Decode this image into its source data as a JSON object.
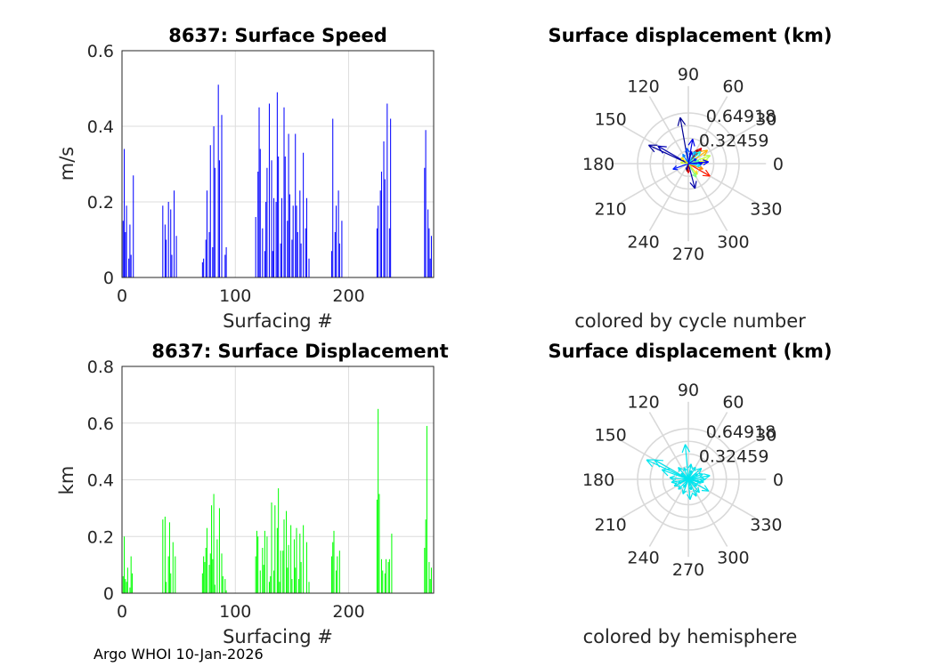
{
  "footer": "Argo WHOI 10-Jan-2026",
  "chart_data": [
    {
      "id": "speed",
      "type": "bar",
      "title": "8637: Surface Speed",
      "xlabel": "Surfacing #",
      "ylabel": "m/s",
      "xlim": [
        0,
        275
      ],
      "ylim": [
        0,
        0.6
      ],
      "xticks": [
        "0",
        "100",
        "200"
      ],
      "yticks": [
        "0",
        "0.2",
        "0.4",
        "0.6"
      ],
      "color": "#0000ff",
      "grid": true,
      "series": [
        {
          "name": "speed",
          "x": [
            1,
            2,
            3,
            4,
            6,
            7,
            8,
            10,
            36,
            38,
            39,
            41,
            43,
            44,
            46,
            48,
            71,
            72,
            74,
            75,
            77,
            78,
            80,
            81,
            82,
            85,
            86,
            88,
            91,
            92,
            118,
            120,
            121,
            122,
            124,
            126,
            127,
            128,
            130,
            132,
            133,
            134,
            136,
            137,
            138,
            140,
            141,
            143,
            144,
            146,
            147,
            148,
            150,
            151,
            153,
            154,
            155,
            157,
            158,
            160,
            162,
            163,
            165,
            185,
            186,
            188,
            189,
            191,
            192,
            194,
            225,
            226,
            228,
            229,
            231,
            232,
            234,
            236,
            237,
            267,
            268,
            270,
            271,
            272,
            273
          ],
          "y": [
            0.15,
            0.34,
            0.12,
            0.19,
            0.05,
            0.14,
            0.06,
            0.27,
            0.19,
            0.14,
            0.1,
            0.2,
            0.18,
            0.06,
            0.23,
            0.11,
            0.04,
            0.05,
            0.1,
            0.23,
            0.12,
            0.35,
            0.08,
            0.4,
            0.29,
            0.51,
            0.31,
            0.43,
            0.06,
            0.08,
            0.16,
            0.28,
            0.45,
            0.34,
            0.13,
            0.07,
            0.2,
            0.29,
            0.46,
            0.31,
            0.07,
            0.21,
            0.2,
            0.49,
            0.32,
            0.09,
            0.21,
            0.45,
            0.32,
            0.15,
            0.38,
            0.22,
            0.1,
            0.19,
            0.38,
            0.19,
            0.12,
            0.23,
            0.09,
            0.33,
            0.13,
            0.21,
            0.05,
            0.07,
            0.42,
            0.12,
            0.19,
            0.23,
            0.09,
            0.15,
            0.13,
            0.19,
            0.23,
            0.28,
            0.36,
            0.26,
            0.46,
            0.13,
            0.42,
            0.29,
            0.39,
            0.18,
            0.13,
            0.05,
            0.11
          ]
        }
      ]
    },
    {
      "id": "displacement",
      "type": "bar",
      "title": "8637: Surface Displacement",
      "xlabel": "Surfacing #",
      "ylabel": "km",
      "xlim": [
        0,
        275
      ],
      "ylim": [
        0,
        0.8
      ],
      "xticks": [
        "0",
        "100",
        "200"
      ],
      "yticks": [
        "0",
        "0.2",
        "0.4",
        "0.6",
        "0.8"
      ],
      "color": "#00ff00",
      "grid": true,
      "series": [
        {
          "name": "displacement",
          "x": [
            1,
            2,
            3,
            4,
            5,
            7,
            8,
            9,
            36,
            38,
            39,
            41,
            42,
            43,
            45,
            47,
            71,
            72,
            73,
            74,
            75,
            77,
            78,
            79,
            80,
            81,
            82,
            84,
            86,
            88,
            89,
            91,
            92,
            118,
            119,
            120,
            122,
            124,
            125,
            126,
            128,
            130,
            131,
            132,
            134,
            135,
            137,
            138,
            139,
            140,
            142,
            143,
            145,
            146,
            147,
            149,
            150,
            152,
            153,
            154,
            156,
            157,
            158,
            160,
            163,
            165,
            185,
            186,
            187,
            189,
            190,
            192,
            225,
            226,
            227,
            229,
            230,
            232,
            233,
            235,
            236,
            238,
            267,
            268,
            269,
            271,
            272,
            273
          ],
          "y": [
            0.06,
            0.2,
            0.05,
            0.04,
            0.09,
            0.02,
            0.13,
            0.07,
            0.26,
            0.27,
            0.04,
            0.13,
            0.25,
            0.07,
            0.18,
            0.13,
            0.07,
            0.13,
            0.11,
            0.16,
            0.23,
            0.1,
            0.14,
            0.31,
            0.12,
            0.35,
            0.03,
            0.19,
            0.3,
            0.14,
            0.06,
            0.05,
            0.01,
            0.13,
            0.22,
            0.2,
            0.08,
            0.16,
            0.1,
            0.22,
            0.2,
            0.04,
            0.06,
            0.32,
            0.08,
            0.31,
            0.23,
            0.37,
            0.04,
            0.15,
            0.15,
            0.26,
            0.29,
            0.09,
            0.17,
            0.24,
            0.05,
            0.19,
            0.09,
            0.23,
            0.05,
            0.21,
            0.11,
            0.24,
            0.18,
            0.04,
            0.13,
            0.18,
            0.22,
            0.08,
            0.13,
            0.15,
            0.33,
            0.65,
            0.35,
            0.12,
            0.08,
            0.07,
            0.12,
            0.11,
            0.12,
            0.21,
            0.16,
            0.26,
            0.59,
            0.11,
            0.05,
            0.09
          ]
        }
      ]
    },
    {
      "id": "polar-cycle",
      "type": "polar-vectors",
      "title": "Surface displacement (km)",
      "caption": "colored by cycle number",
      "rmax": 0.64918,
      "ring_labels": [
        "0.32459",
        "0.64918"
      ],
      "angle_labels": [
        "0",
        "30",
        "60",
        "90",
        "120",
        "150",
        "180",
        "210",
        "240",
        "270",
        "300",
        "330"
      ],
      "color_mode": "cycle",
      "vectors": [
        {
          "angle": 100,
          "r": 0.6,
          "c": 0.02
        },
        {
          "angle": 155,
          "r": 0.56,
          "c": 0.03
        },
        {
          "angle": 150,
          "r": 0.45,
          "c": 0.05
        },
        {
          "angle": 285,
          "r": 0.33,
          "c": 0.04
        },
        {
          "angle": 80,
          "r": 0.32,
          "c": 0.1
        },
        {
          "angle": 200,
          "r": 0.21,
          "c": 0.15
        },
        {
          "angle": 20,
          "r": 0.3,
          "c": 0.55
        },
        {
          "angle": 10,
          "r": 0.25,
          "c": 0.6
        },
        {
          "angle": 35,
          "r": 0.3,
          "c": 0.7
        },
        {
          "angle": 330,
          "r": 0.32,
          "c": 0.85
        },
        {
          "angle": 340,
          "r": 0.2,
          "c": 0.75
        },
        {
          "angle": 50,
          "r": 0.26,
          "c": 0.9
        },
        {
          "angle": 55,
          "r": 0.22,
          "c": 0.95
        },
        {
          "angle": 310,
          "r": 0.18,
          "c": 0.65
        },
        {
          "angle": 300,
          "r": 0.2,
          "c": 0.5
        },
        {
          "angle": 45,
          "r": 0.22,
          "c": 0.4
        },
        {
          "angle": 60,
          "r": 0.18,
          "c": 0.3
        },
        {
          "angle": 95,
          "r": 0.2,
          "c": 0.2
        },
        {
          "angle": 0,
          "r": 0.18,
          "c": 0.1
        },
        {
          "angle": 15,
          "r": 0.14,
          "c": 0.45
        },
        {
          "angle": 350,
          "r": 0.16,
          "c": 0.35
        },
        {
          "angle": 270,
          "r": 0.12,
          "c": 0.9
        },
        {
          "angle": 260,
          "r": 0.1,
          "c": 0.98
        },
        {
          "angle": 120,
          "r": 0.14,
          "c": 0.25
        },
        {
          "angle": 140,
          "r": 0.12,
          "c": 0.65
        },
        {
          "angle": 170,
          "r": 0.1,
          "c": 0.58
        },
        {
          "angle": 75,
          "r": 0.16,
          "c": 0.08
        },
        {
          "angle": 30,
          "r": 0.12,
          "c": 0.15
        },
        {
          "angle": 250,
          "r": 0.08,
          "c": 0.05
        },
        {
          "angle": 5,
          "r": 0.26,
          "c": 0.12
        }
      ]
    },
    {
      "id": "polar-hemisphere",
      "type": "polar-vectors",
      "title": "Surface displacement (km)",
      "caption": "colored by hemisphere",
      "rmax": 0.64918,
      "ring_labels": [
        "0.32459",
        "0.64918"
      ],
      "angle_labels": [
        "0",
        "30",
        "60",
        "90",
        "120",
        "150",
        "180",
        "210",
        "240",
        "270",
        "300",
        "330"
      ],
      "color_mode": "single",
      "color": "#00e5ee",
      "vectors": [
        {
          "angle": 95,
          "r": 0.45
        },
        {
          "angle": 155,
          "r": 0.59
        },
        {
          "angle": 150,
          "r": 0.5
        },
        {
          "angle": 160,
          "r": 0.36
        },
        {
          "angle": 330,
          "r": 0.3
        },
        {
          "angle": 10,
          "r": 0.28
        },
        {
          "angle": 20,
          "r": 0.2
        },
        {
          "angle": 40,
          "r": 0.22
        },
        {
          "angle": 60,
          "r": 0.18
        },
        {
          "angle": 80,
          "r": 0.2
        },
        {
          "angle": 110,
          "r": 0.16
        },
        {
          "angle": 130,
          "r": 0.2
        },
        {
          "angle": 175,
          "r": 0.24
        },
        {
          "angle": 190,
          "r": 0.22
        },
        {
          "angle": 205,
          "r": 0.2
        },
        {
          "angle": 225,
          "r": 0.18
        },
        {
          "angle": 250,
          "r": 0.2
        },
        {
          "angle": 275,
          "r": 0.26
        },
        {
          "angle": 295,
          "r": 0.24
        },
        {
          "angle": 310,
          "r": 0.22
        },
        {
          "angle": 350,
          "r": 0.2
        },
        {
          "angle": 0,
          "r": 0.22
        },
        {
          "angle": 30,
          "r": 0.14
        },
        {
          "angle": 70,
          "r": 0.12
        },
        {
          "angle": 140,
          "r": 0.12
        },
        {
          "angle": 200,
          "r": 0.14
        },
        {
          "angle": 240,
          "r": 0.12
        },
        {
          "angle": 285,
          "r": 0.14
        },
        {
          "angle": 320,
          "r": 0.14
        },
        {
          "angle": 345,
          "r": 0.16
        }
      ]
    }
  ]
}
